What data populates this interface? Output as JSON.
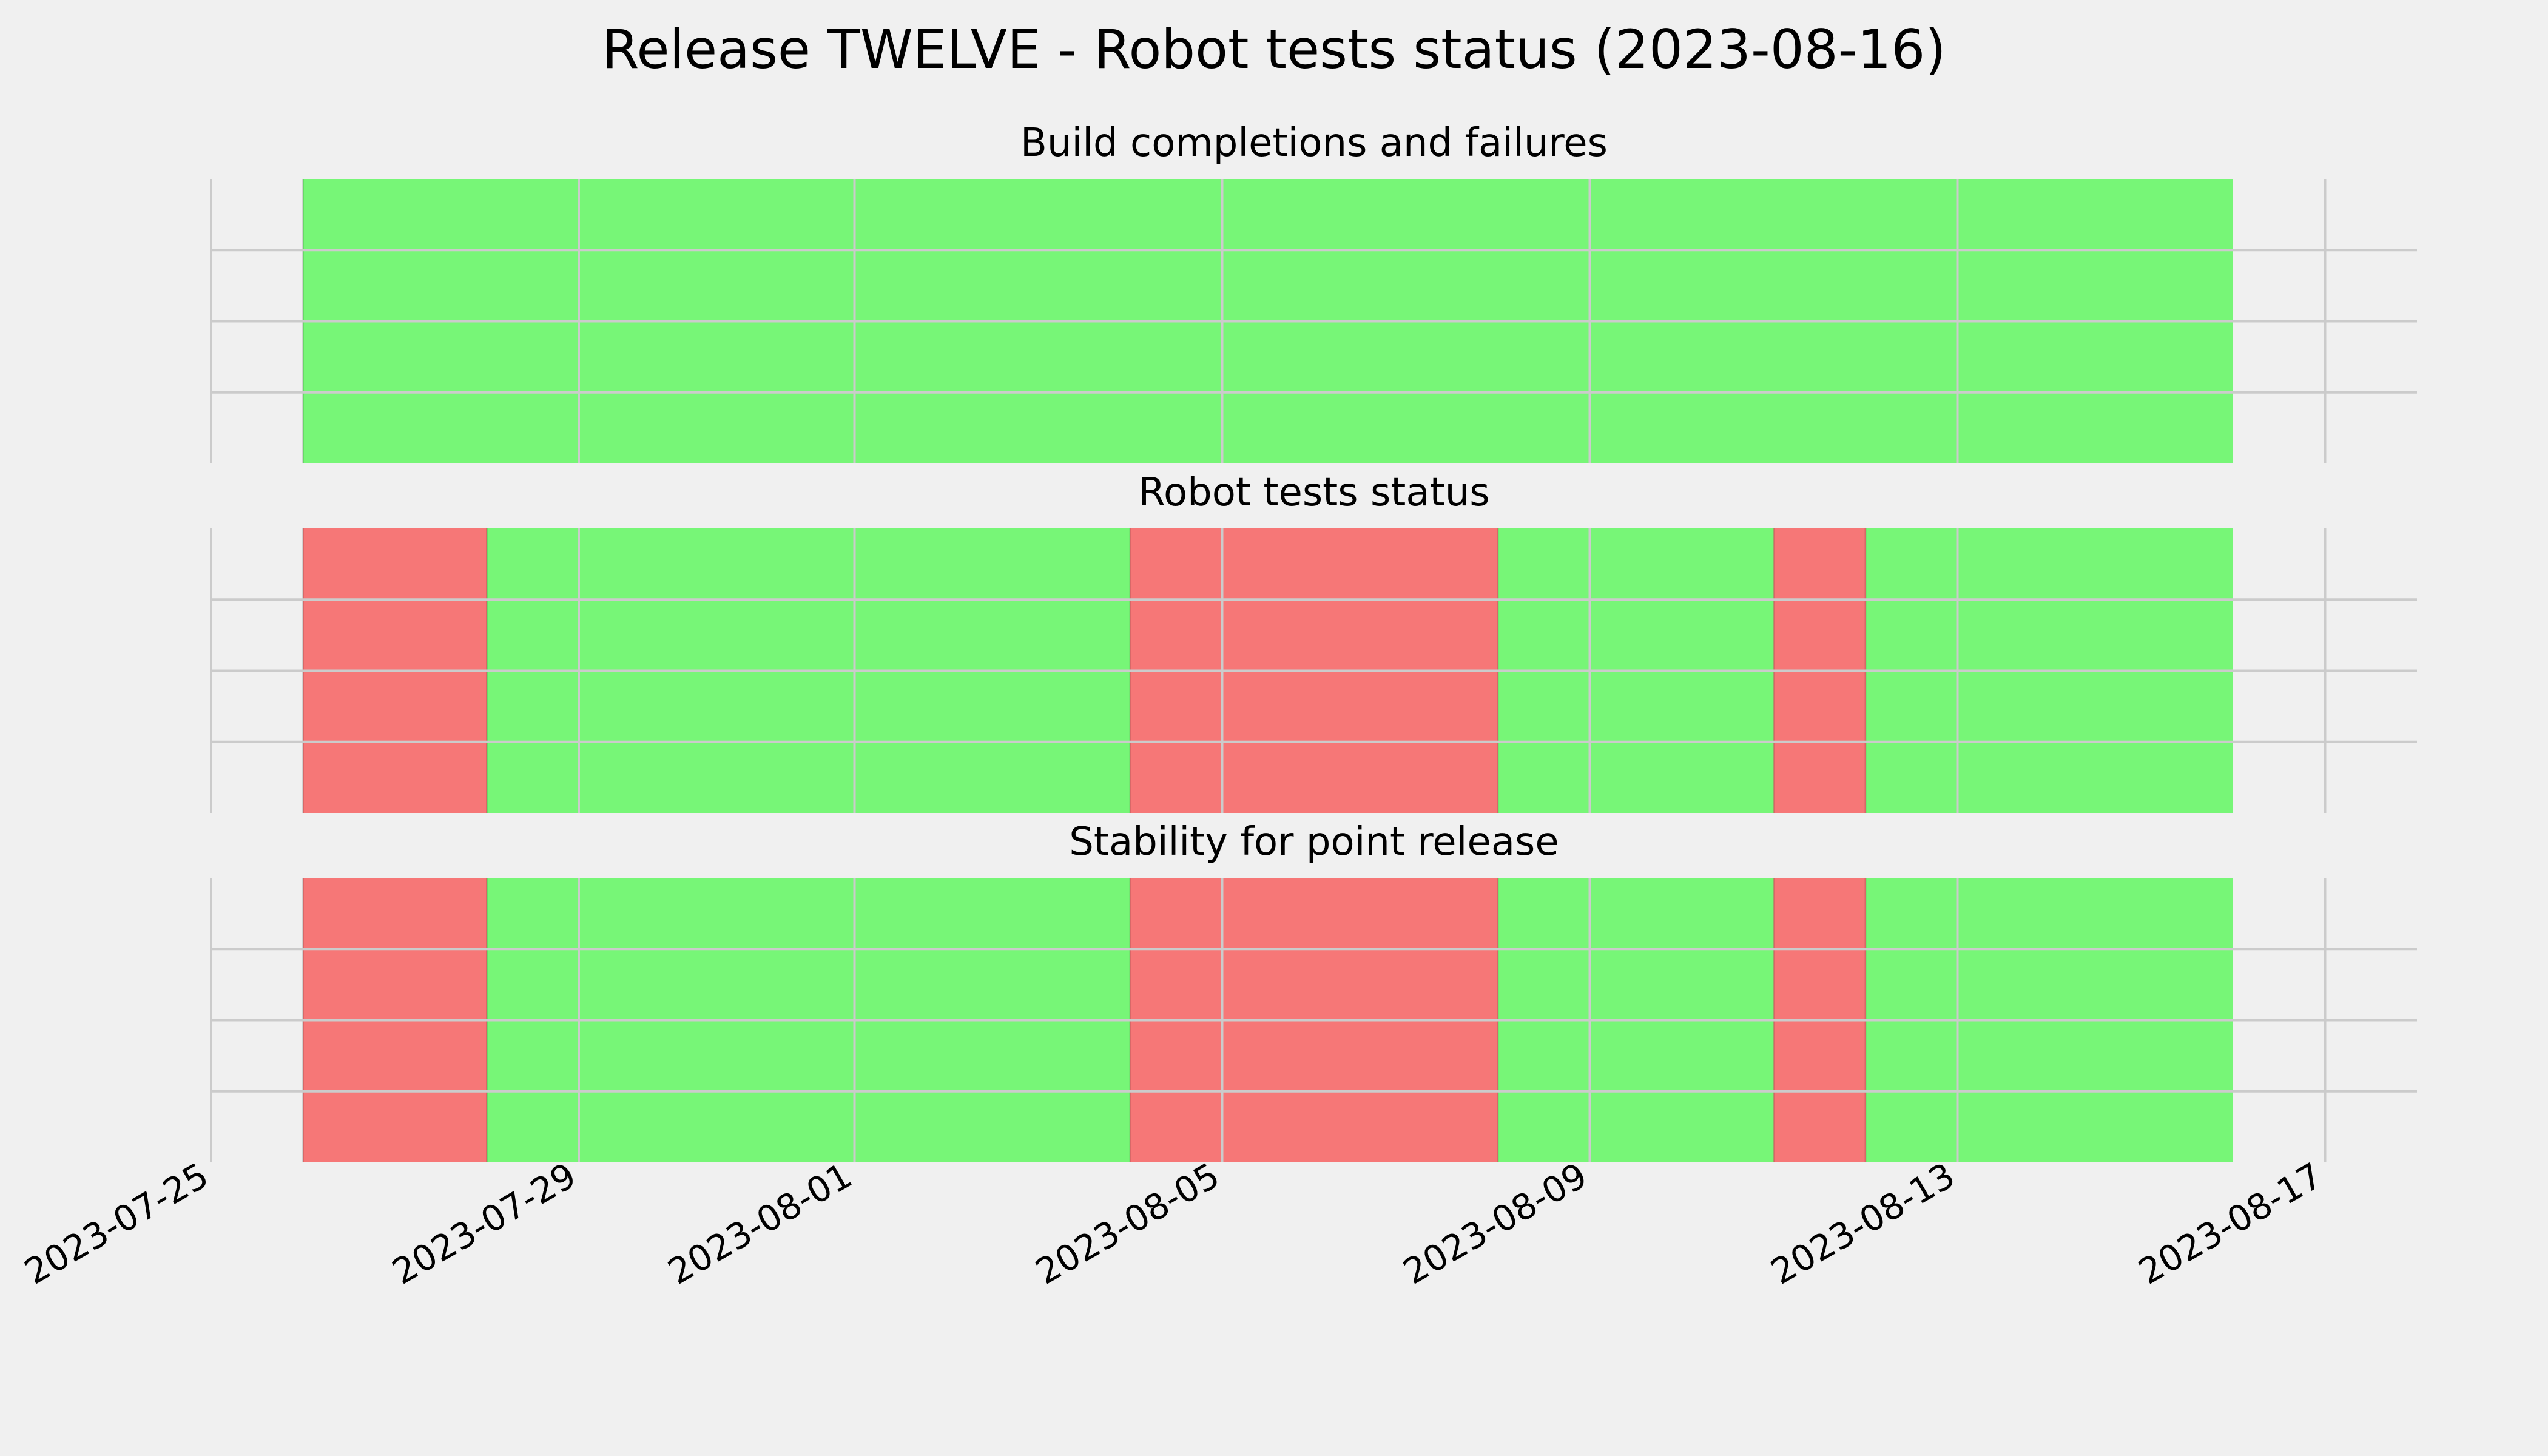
{
  "chart_data": {
    "type": "timeline",
    "title": "Release TWELVE - Robot tests status (2023-08-16)",
    "xlim": [
      "2023-07-25",
      "2023-08-18"
    ],
    "xticks": [
      "2023-07-25",
      "2023-07-29",
      "2023-08-01",
      "2023-08-05",
      "2023-08-09",
      "2023-08-13",
      "2023-08-17"
    ],
    "grid": true,
    "colors": {
      "pass": "#77f677",
      "fail": "#f67777",
      "background": "#f0f0f0",
      "grid": "#cbcbcb"
    },
    "panels": [
      {
        "title": "Build completions and failures",
        "segments": [
          {
            "start": "2023-07-26",
            "end": "2023-08-16",
            "status": "pass"
          }
        ]
      },
      {
        "title": "Robot tests status",
        "segments": [
          {
            "start": "2023-07-26",
            "end": "2023-07-28",
            "status": "fail"
          },
          {
            "start": "2023-07-28",
            "end": "2023-08-04",
            "status": "pass"
          },
          {
            "start": "2023-08-04",
            "end": "2023-08-08",
            "status": "fail"
          },
          {
            "start": "2023-08-08",
            "end": "2023-08-11",
            "status": "pass"
          },
          {
            "start": "2023-08-11",
            "end": "2023-08-12",
            "status": "fail"
          },
          {
            "start": "2023-08-12",
            "end": "2023-08-16",
            "status": "pass"
          }
        ]
      },
      {
        "title": "Stability for point release",
        "segments": [
          {
            "start": "2023-07-26",
            "end": "2023-07-28",
            "status": "fail"
          },
          {
            "start": "2023-07-28",
            "end": "2023-08-04",
            "status": "pass"
          },
          {
            "start": "2023-08-04",
            "end": "2023-08-08",
            "status": "fail"
          },
          {
            "start": "2023-08-08",
            "end": "2023-08-11",
            "status": "pass"
          },
          {
            "start": "2023-08-11",
            "end": "2023-08-12",
            "status": "fail"
          },
          {
            "start": "2023-08-12",
            "end": "2023-08-16",
            "status": "pass"
          }
        ]
      }
    ]
  }
}
